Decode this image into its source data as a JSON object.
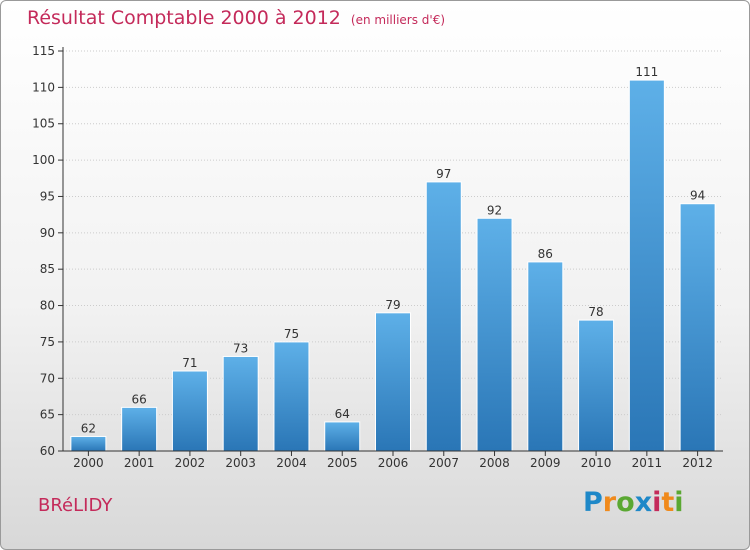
{
  "header": {
    "title": "Résultat Comptable 2000 à 2012",
    "unit": "(en milliers d'€)"
  },
  "footer": {
    "commune": "BRéLIDY",
    "brand_letters": [
      "P",
      "r",
      "o",
      "x",
      "i",
      "t",
      "i"
    ],
    "brand_colors": [
      "#1e88c8",
      "#f08a1c",
      "#5aa832",
      "#1e88c8",
      "#c42a5a",
      "#f08a1c",
      "#5aa832"
    ]
  },
  "colors": {
    "title": "#c42a5a",
    "bar_light": "#5eb0e8",
    "bar_dark": "#2a76b6",
    "axis": "#333333",
    "grid": "#cccccc"
  },
  "chart_data": {
    "type": "bar",
    "title": "Résultat Comptable 2000 à 2012",
    "subtitle": "(en milliers d'€)",
    "xlabel": "",
    "ylabel": "",
    "categories": [
      "2000",
      "2001",
      "2002",
      "2003",
      "2004",
      "2005",
      "2006",
      "2007",
      "2008",
      "2009",
      "2010",
      "2011",
      "2012"
    ],
    "values": [
      62,
      66,
      71,
      73,
      75,
      64,
      79,
      97,
      92,
      86,
      78,
      111,
      94
    ],
    "ylim": [
      60,
      115
    ],
    "yticks": [
      60,
      65,
      70,
      75,
      80,
      85,
      90,
      95,
      100,
      105,
      110,
      115
    ],
    "grid": true,
    "legend": "none"
  }
}
